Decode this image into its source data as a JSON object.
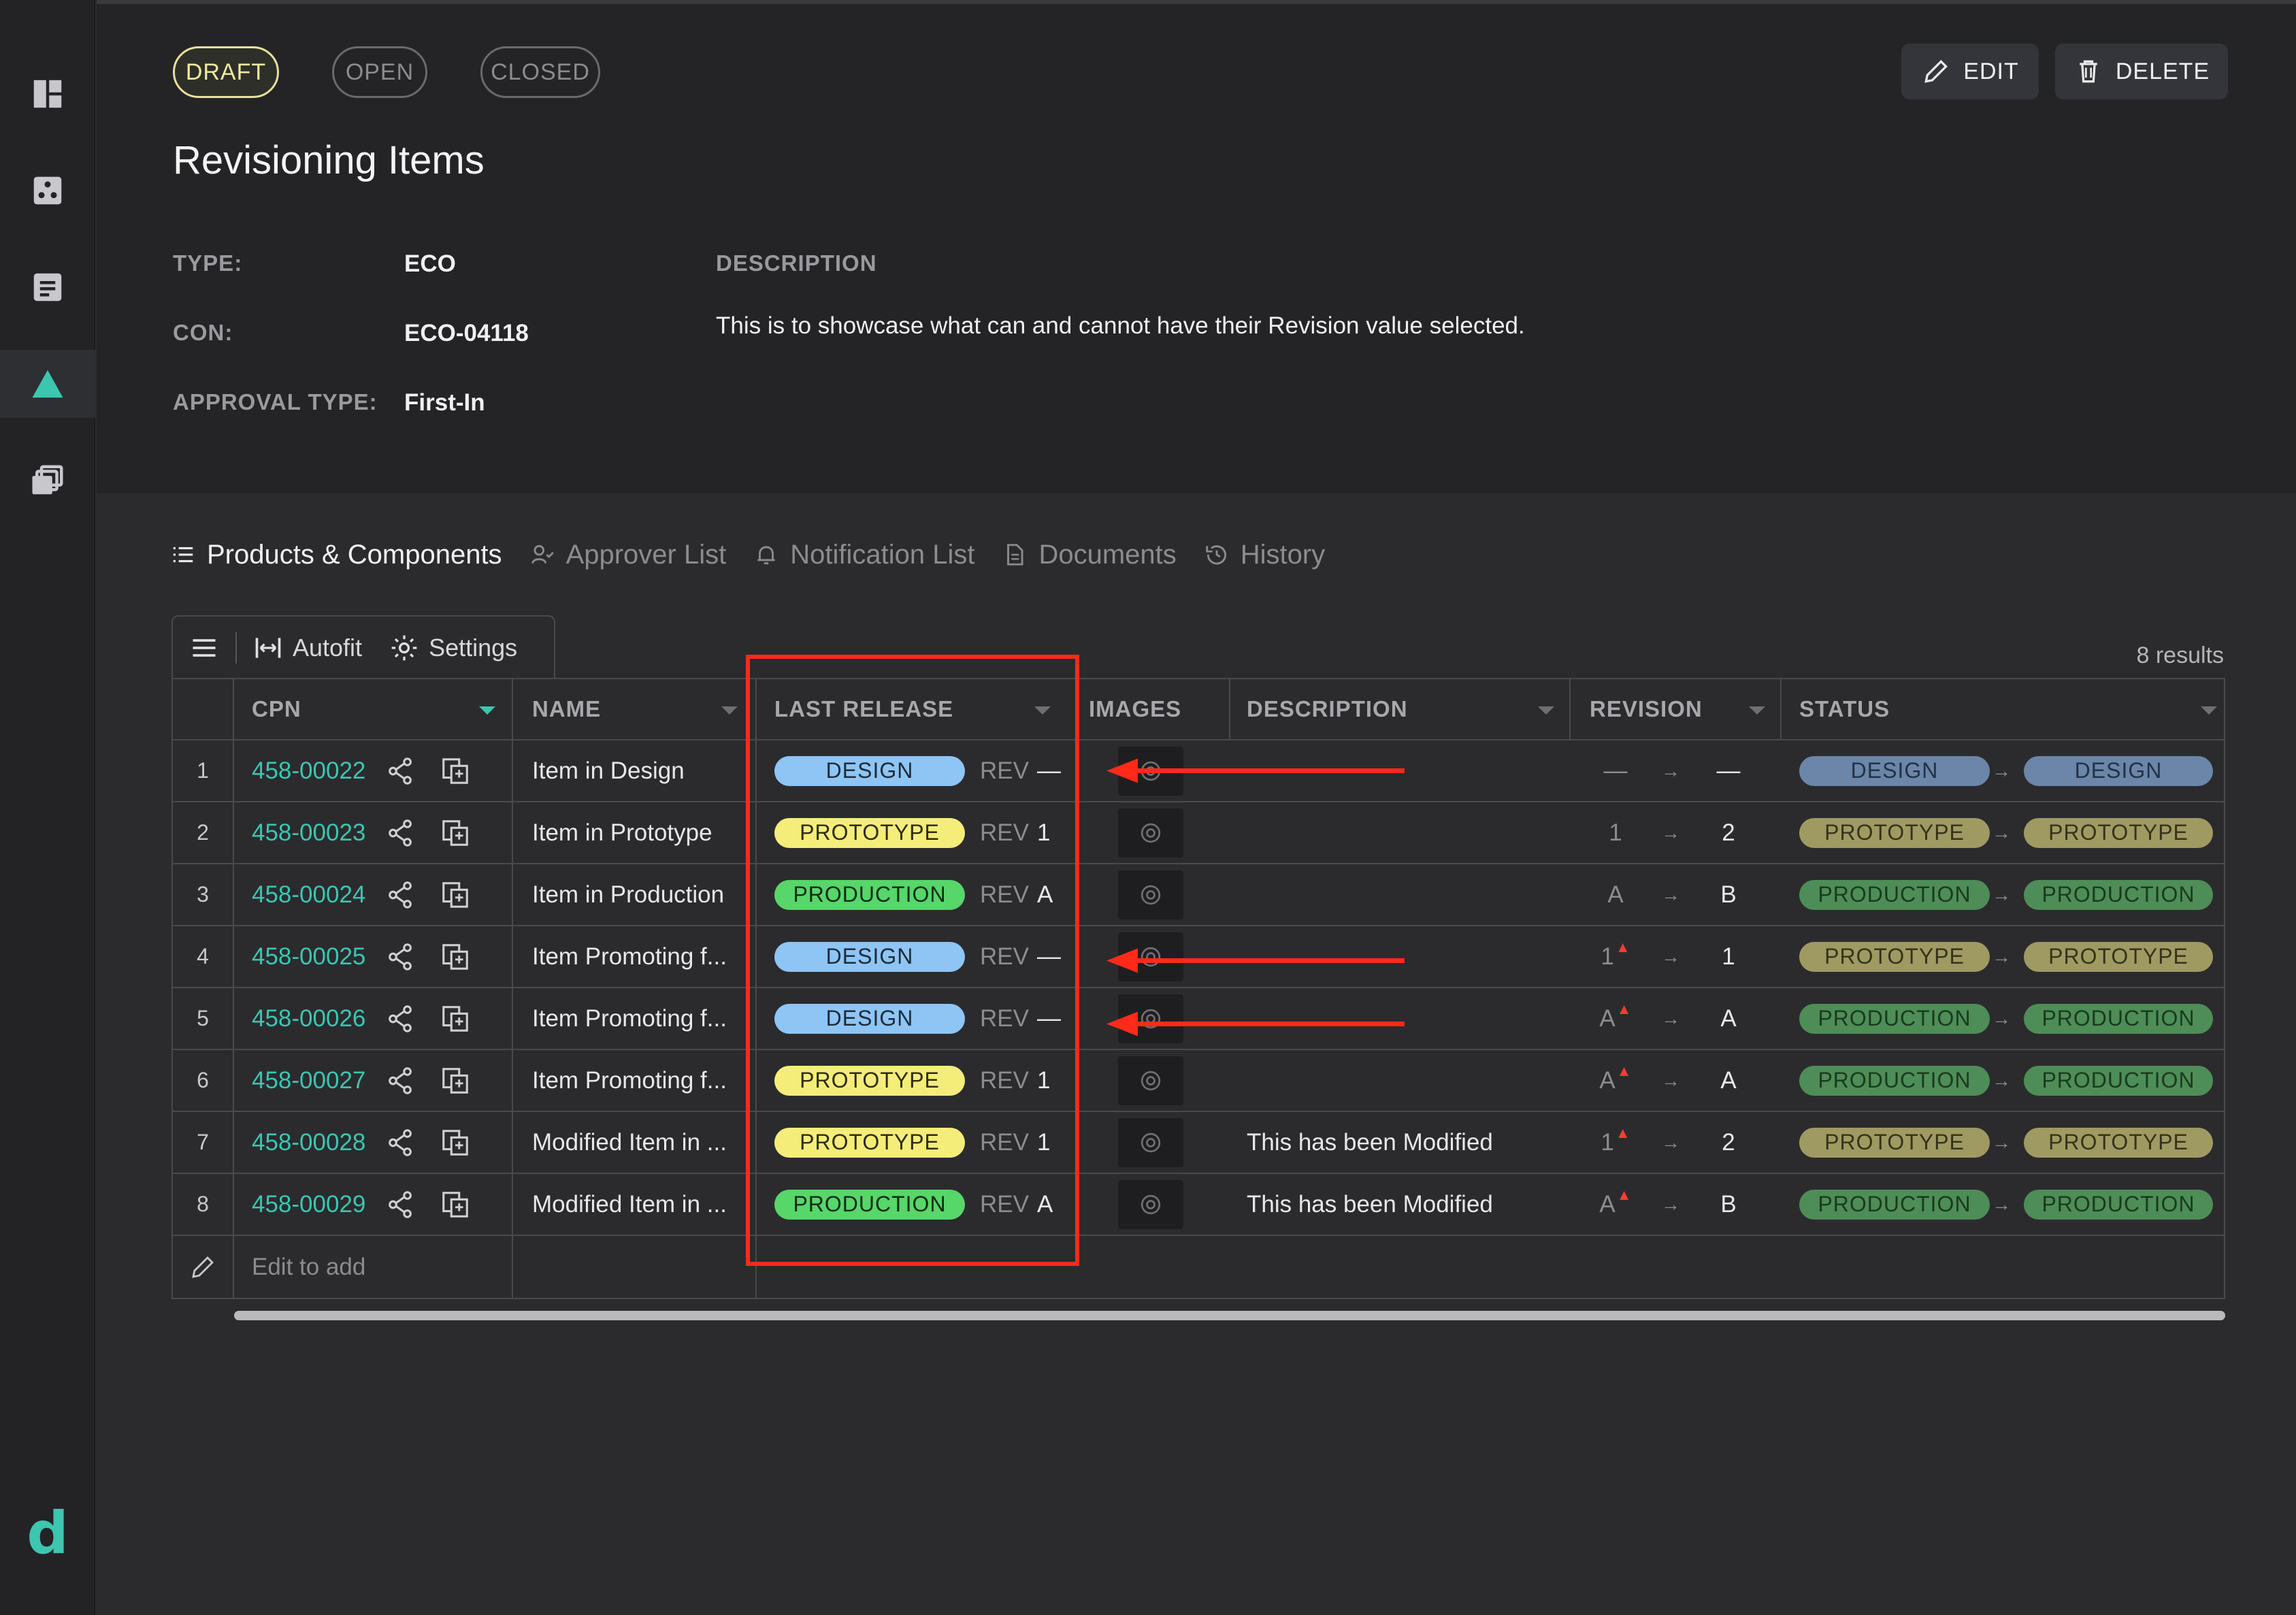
{
  "sidebar": {
    "icons": [
      "dashboard-icon",
      "components-icon",
      "documents-icon",
      "changes-icon",
      "library-icon"
    ],
    "logo": "d"
  },
  "status_pills": [
    "DRAFT",
    "OPEN",
    "CLOSED"
  ],
  "actions": {
    "edit": "EDIT",
    "delete": "DELETE"
  },
  "page_title": "Revisioning Items",
  "meta": {
    "type_label": "TYPE:",
    "type_value": "ECO",
    "con_label": "CON:",
    "con_value": "ECO-04118",
    "approval_label": "APPROVAL TYPE:",
    "approval_value": "First-In",
    "description_label": "DESCRIPTION",
    "description_text": "This is to showcase what can and cannot have their Revision value selected."
  },
  "tabs": [
    {
      "label": "Products & Components",
      "icon": "list-icon",
      "active": true
    },
    {
      "label": "Approver List",
      "icon": "approver-icon",
      "active": false
    },
    {
      "label": "Notification List",
      "icon": "bell-icon",
      "active": false
    },
    {
      "label": "Documents",
      "icon": "document-icon",
      "active": false
    },
    {
      "label": "History",
      "icon": "history-icon",
      "active": false
    }
  ],
  "toolbar": {
    "autofit": "Autofit",
    "settings": "Settings",
    "results": "8 results"
  },
  "table": {
    "headers": {
      "cpn": "CPN",
      "name": "NAME",
      "last_release": "LAST RELEASE",
      "images": "IMAGES",
      "description": "DESCRIPTION",
      "revision": "REVISION",
      "status": "STATUS"
    },
    "rev_prefix": "REV",
    "rows": [
      {
        "num": "1",
        "cpn": "458-00022",
        "name": "Item in Design",
        "release": "DESIGN",
        "rev": "—",
        "desc": "",
        "rev_from": "—",
        "rev_mod": false,
        "rev_to": "—",
        "status_from": "DESIGN",
        "status_to": "DESIGN"
      },
      {
        "num": "2",
        "cpn": "458-00023",
        "name": "Item in Prototype",
        "release": "PROTOTYPE",
        "rev": "1",
        "desc": "",
        "rev_from": "1",
        "rev_mod": false,
        "rev_to": "2",
        "status_from": "PROTOTYPE",
        "status_to": "PROTOTYPE"
      },
      {
        "num": "3",
        "cpn": "458-00024",
        "name": "Item in Production",
        "release": "PRODUCTION",
        "rev": "A",
        "desc": "",
        "rev_from": "A",
        "rev_mod": false,
        "rev_to": "B",
        "status_from": "PRODUCTION",
        "status_to": "PRODUCTION"
      },
      {
        "num": "4",
        "cpn": "458-00025",
        "name": "Item Promoting f...",
        "release": "DESIGN",
        "rev": "—",
        "desc": "",
        "rev_from": "1",
        "rev_mod": true,
        "rev_to": "1",
        "status_from": "PROTOTYPE",
        "status_to": "PROTOTYPE"
      },
      {
        "num": "5",
        "cpn": "458-00026",
        "name": "Item Promoting f...",
        "release": "DESIGN",
        "rev": "—",
        "desc": "",
        "rev_from": "A",
        "rev_mod": true,
        "rev_to": "A",
        "status_from": "PRODUCTION",
        "status_to": "PRODUCTION"
      },
      {
        "num": "6",
        "cpn": "458-00027",
        "name": "Item Promoting f...",
        "release": "PROTOTYPE",
        "rev": "1",
        "desc": "",
        "rev_from": "A",
        "rev_mod": true,
        "rev_to": "A",
        "status_from": "PRODUCTION",
        "status_to": "PRODUCTION"
      },
      {
        "num": "7",
        "cpn": "458-00028",
        "name": "Modified Item in ...",
        "release": "PROTOTYPE",
        "rev": "1",
        "desc": "This has been Modified",
        "rev_from": "1",
        "rev_mod": true,
        "rev_to": "2",
        "status_from": "PROTOTYPE",
        "status_to": "PROTOTYPE"
      },
      {
        "num": "8",
        "cpn": "458-00029",
        "name": "Modified Item in ...",
        "release": "PRODUCTION",
        "rev": "A",
        "desc": "This has been Modified",
        "rev_from": "A",
        "rev_mod": true,
        "rev_to": "B",
        "status_from": "PRODUCTION",
        "status_to": "PRODUCTION"
      }
    ],
    "add_placeholder": "Edit to add"
  },
  "annotations": {
    "arrow_rows": [
      1,
      4,
      5
    ],
    "highlight_column": "LAST RELEASE",
    "color": "#ff2a1a"
  },
  "colors": {
    "accent": "#3cc6b0",
    "design": "#8ec5f4",
    "prototype": "#f5ed7a",
    "production": "#57d66a"
  }
}
